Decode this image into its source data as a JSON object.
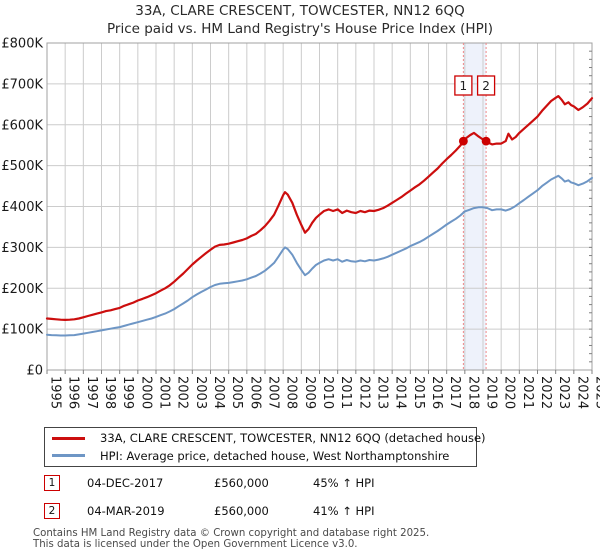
{
  "title": {
    "line1": "33A, CLARE CRESCENT, TOWCESTER, NN12 6QQ",
    "line2": "Price paid vs. HM Land Registry's House Price Index (HPI)"
  },
  "chart_data": {
    "type": "line",
    "units": "GBP_thousands",
    "x_range": [
      1995,
      2025
    ],
    "y_range": [
      0,
      800
    ],
    "grid": true,
    "y_tick_labels": [
      "£0",
      "£100K",
      "£200K",
      "£300K",
      "£400K",
      "£500K",
      "£600K",
      "£700K",
      "£800K"
    ],
    "x_tick_labels": [
      "1995",
      "1996",
      "1997",
      "1998",
      "1999",
      "2000",
      "2001",
      "2002",
      "2003",
      "2004",
      "2005",
      "2006",
      "2007",
      "2008",
      "2009",
      "2010",
      "2011",
      "2012",
      "2013",
      "2014",
      "2015",
      "2016",
      "2017",
      "2018",
      "2019",
      "2020",
      "2021",
      "2022",
      "2023",
      "2024",
      "2025"
    ],
    "colors": {
      "price_line": "#cc0e0e",
      "hpi_line": "#6e96c5",
      "sale_vline": "#ee8888",
      "sale_band": "#eef2fb",
      "grid": "#cccccc",
      "border": "#a0a0a0",
      "tick": "#808080",
      "marker_fill": "#cc0000"
    },
    "series": [
      {
        "name": "33A, CLARE CRESCENT, TOWCESTER, NN12 6QQ (detached house)",
        "color": "#cc0e0e",
        "points": [
          [
            1995,
            126
          ],
          [
            1995.25,
            125
          ],
          [
            1995.5,
            124
          ],
          [
            1995.75,
            123
          ],
          [
            1996,
            122.5
          ],
          [
            1996.25,
            123
          ],
          [
            1996.5,
            124
          ],
          [
            1996.75,
            126
          ],
          [
            1997,
            129
          ],
          [
            1997.25,
            132
          ],
          [
            1997.5,
            135
          ],
          [
            1997.75,
            138
          ],
          [
            1998,
            141
          ],
          [
            1998.25,
            144
          ],
          [
            1998.5,
            146
          ],
          [
            1998.75,
            149
          ],
          [
            1999,
            152
          ],
          [
            1999.25,
            157
          ],
          [
            1999.5,
            161
          ],
          [
            1999.75,
            165
          ],
          [
            2000,
            170
          ],
          [
            2000.25,
            174
          ],
          [
            2000.5,
            178
          ],
          [
            2000.75,
            183
          ],
          [
            2001,
            188
          ],
          [
            2001.25,
            194
          ],
          [
            2001.5,
            200
          ],
          [
            2001.75,
            207
          ],
          [
            2002,
            216
          ],
          [
            2002.25,
            226
          ],
          [
            2002.5,
            236
          ],
          [
            2002.75,
            247
          ],
          [
            2003,
            258
          ],
          [
            2003.25,
            268
          ],
          [
            2003.5,
            277
          ],
          [
            2003.75,
            286
          ],
          [
            2004,
            294
          ],
          [
            2004.25,
            302
          ],
          [
            2004.5,
            306
          ],
          [
            2004.75,
            307
          ],
          [
            2005,
            309
          ],
          [
            2005.25,
            312
          ],
          [
            2005.5,
            315
          ],
          [
            2005.75,
            318
          ],
          [
            2006,
            322
          ],
          [
            2006.25,
            328
          ],
          [
            2006.5,
            333
          ],
          [
            2006.75,
            342
          ],
          [
            2007,
            352
          ],
          [
            2007.25,
            365
          ],
          [
            2007.5,
            380
          ],
          [
            2007.75,
            403
          ],
          [
            2008,
            428
          ],
          [
            2008.1,
            435
          ],
          [
            2008.25,
            429
          ],
          [
            2008.5,
            409
          ],
          [
            2008.75,
            380
          ],
          [
            2009,
            355
          ],
          [
            2009.2,
            336
          ],
          [
            2009.4,
            345
          ],
          [
            2009.6,
            360
          ],
          [
            2009.8,
            372
          ],
          [
            2010,
            380
          ],
          [
            2010.25,
            389
          ],
          [
            2010.5,
            393
          ],
          [
            2010.75,
            389
          ],
          [
            2011,
            393
          ],
          [
            2011.25,
            384
          ],
          [
            2011.5,
            390
          ],
          [
            2011.75,
            386
          ],
          [
            2012,
            384
          ],
          [
            2012.25,
            389
          ],
          [
            2012.5,
            386
          ],
          [
            2012.75,
            390
          ],
          [
            2013,
            389
          ],
          [
            2013.25,
            392
          ],
          [
            2013.5,
            396
          ],
          [
            2013.75,
            402
          ],
          [
            2014,
            409
          ],
          [
            2014.25,
            416
          ],
          [
            2014.5,
            423
          ],
          [
            2014.75,
            431
          ],
          [
            2015,
            439
          ],
          [
            2015.25,
            447
          ],
          [
            2015.5,
            454
          ],
          [
            2015.75,
            463
          ],
          [
            2016,
            473
          ],
          [
            2016.25,
            483
          ],
          [
            2016.5,
            493
          ],
          [
            2016.75,
            505
          ],
          [
            2017,
            516
          ],
          [
            2017.25,
            526
          ],
          [
            2017.5,
            537
          ],
          [
            2017.75,
            549
          ],
          [
            2017.92,
            560
          ],
          [
            2018.1,
            568
          ],
          [
            2018.3,
            575
          ],
          [
            2018.5,
            580
          ],
          [
            2018.7,
            573
          ],
          [
            2019,
            564
          ],
          [
            2019.17,
            560
          ],
          [
            2019.3,
            556
          ],
          [
            2019.5,
            552
          ],
          [
            2019.75,
            554
          ],
          [
            2020,
            554
          ],
          [
            2020.25,
            560
          ],
          [
            2020.4,
            578
          ],
          [
            2020.6,
            564
          ],
          [
            2020.8,
            570
          ],
          [
            2021,
            580
          ],
          [
            2021.25,
            590
          ],
          [
            2021.5,
            600
          ],
          [
            2021.75,
            610
          ],
          [
            2022,
            620
          ],
          [
            2022.25,
            634
          ],
          [
            2022.5,
            646
          ],
          [
            2022.75,
            658
          ],
          [
            2023,
            666
          ],
          [
            2023.15,
            670
          ],
          [
            2023.35,
            660
          ],
          [
            2023.5,
            650
          ],
          [
            2023.7,
            655
          ],
          [
            2023.85,
            648
          ],
          [
            2024,
            645
          ],
          [
            2024.25,
            636
          ],
          [
            2024.5,
            643
          ],
          [
            2024.75,
            652
          ],
          [
            2025,
            665
          ]
        ]
      },
      {
        "name": "HPI: Average price, detached house, West Northamptonshire",
        "color": "#6e96c5",
        "points": [
          [
            1995,
            86
          ],
          [
            1995.25,
            85.5
          ],
          [
            1995.5,
            85
          ],
          [
            1995.75,
            84.5
          ],
          [
            1996,
            84.5
          ],
          [
            1996.25,
            85
          ],
          [
            1996.5,
            85.5
          ],
          [
            1996.75,
            87
          ],
          [
            1997,
            89
          ],
          [
            1997.25,
            91
          ],
          [
            1997.5,
            93
          ],
          [
            1997.75,
            95
          ],
          [
            1998,
            97
          ],
          [
            1998.25,
            99
          ],
          [
            1998.5,
            101
          ],
          [
            1998.75,
            103
          ],
          [
            1999,
            105
          ],
          [
            1999.25,
            108
          ],
          [
            1999.5,
            111
          ],
          [
            1999.75,
            114
          ],
          [
            2000,
            117
          ],
          [
            2000.25,
            120
          ],
          [
            2000.5,
            123
          ],
          [
            2000.75,
            126
          ],
          [
            2001,
            130
          ],
          [
            2001.25,
            134
          ],
          [
            2001.5,
            138
          ],
          [
            2001.75,
            143
          ],
          [
            2002,
            149
          ],
          [
            2002.25,
            156
          ],
          [
            2002.5,
            163
          ],
          [
            2002.75,
            170
          ],
          [
            2003,
            178
          ],
          [
            2003.25,
            185
          ],
          [
            2003.5,
            191
          ],
          [
            2003.75,
            197
          ],
          [
            2004,
            203
          ],
          [
            2004.25,
            208
          ],
          [
            2004.5,
            211
          ],
          [
            2004.75,
            212
          ],
          [
            2005,
            213
          ],
          [
            2005.25,
            215
          ],
          [
            2005.5,
            217
          ],
          [
            2005.75,
            219
          ],
          [
            2006,
            222
          ],
          [
            2006.25,
            226
          ],
          [
            2006.5,
            230
          ],
          [
            2006.75,
            236
          ],
          [
            2007,
            243
          ],
          [
            2007.25,
            252
          ],
          [
            2007.5,
            262
          ],
          [
            2007.75,
            278
          ],
          [
            2008,
            295
          ],
          [
            2008.1,
            300
          ],
          [
            2008.25,
            296
          ],
          [
            2008.5,
            282
          ],
          [
            2008.75,
            262
          ],
          [
            2009,
            245
          ],
          [
            2009.2,
            232
          ],
          [
            2009.4,
            238
          ],
          [
            2009.6,
            248
          ],
          [
            2009.8,
            257
          ],
          [
            2010,
            262
          ],
          [
            2010.25,
            268
          ],
          [
            2010.5,
            271
          ],
          [
            2010.75,
            268
          ],
          [
            2011,
            271
          ],
          [
            2011.25,
            265
          ],
          [
            2011.5,
            269
          ],
          [
            2011.75,
            266
          ],
          [
            2012,
            265
          ],
          [
            2012.25,
            268
          ],
          [
            2012.5,
            266
          ],
          [
            2012.75,
            269
          ],
          [
            2013,
            268
          ],
          [
            2013.25,
            270
          ],
          [
            2013.5,
            273
          ],
          [
            2013.75,
            277
          ],
          [
            2014,
            282
          ],
          [
            2014.25,
            287
          ],
          [
            2014.5,
            292
          ],
          [
            2014.75,
            297
          ],
          [
            2015,
            303
          ],
          [
            2015.25,
            308
          ],
          [
            2015.5,
            313
          ],
          [
            2015.75,
            319
          ],
          [
            2016,
            326
          ],
          [
            2016.25,
            333
          ],
          [
            2016.5,
            340
          ],
          [
            2016.75,
            348
          ],
          [
            2017,
            356
          ],
          [
            2017.25,
            363
          ],
          [
            2017.5,
            370
          ],
          [
            2017.75,
            378
          ],
          [
            2018,
            388
          ],
          [
            2018.25,
            392
          ],
          [
            2018.5,
            396
          ],
          [
            2018.75,
            398
          ],
          [
            2019,
            398
          ],
          [
            2019.25,
            396
          ],
          [
            2019.5,
            391
          ],
          [
            2019.75,
            393
          ],
          [
            2020,
            393
          ],
          [
            2020.25,
            390
          ],
          [
            2020.5,
            394
          ],
          [
            2020.75,
            400
          ],
          [
            2021,
            408
          ],
          [
            2021.25,
            416
          ],
          [
            2021.5,
            424
          ],
          [
            2021.75,
            432
          ],
          [
            2022,
            440
          ],
          [
            2022.25,
            450
          ],
          [
            2022.5,
            458
          ],
          [
            2022.75,
            466
          ],
          [
            2023,
            472
          ],
          [
            2023.15,
            475
          ],
          [
            2023.35,
            468
          ],
          [
            2023.5,
            461
          ],
          [
            2023.7,
            464
          ],
          [
            2023.85,
            459
          ],
          [
            2024,
            457
          ],
          [
            2024.25,
            452
          ],
          [
            2024.5,
            456
          ],
          [
            2024.75,
            462
          ],
          [
            2025,
            470
          ]
        ]
      }
    ],
    "markers": [
      {
        "label": "1",
        "x": 2017.92,
        "y": 560
      },
      {
        "label": "2",
        "x": 2019.17,
        "y": 560
      }
    ],
    "band": {
      "from": 2017.92,
      "to": 2019.17
    }
  },
  "legend": {
    "items": [
      {
        "label": "33A, CLARE CRESCENT, TOWCESTER, NN12 6QQ (detached house)"
      },
      {
        "label": "HPI: Average price, detached house, West Northamptonshire"
      }
    ]
  },
  "transactions": [
    {
      "num": "1",
      "date": "04-DEC-2017",
      "price": "£560,000",
      "hpi": "45% ↑ HPI"
    },
    {
      "num": "2",
      "date": "04-MAR-2019",
      "price": "£560,000",
      "hpi": "41% ↑ HPI"
    }
  ],
  "footer": {
    "line1": "Contains HM Land Registry data © Crown copyright and database right 2025.",
    "line2": "This data is licensed under the Open Government Licence v3.0."
  }
}
